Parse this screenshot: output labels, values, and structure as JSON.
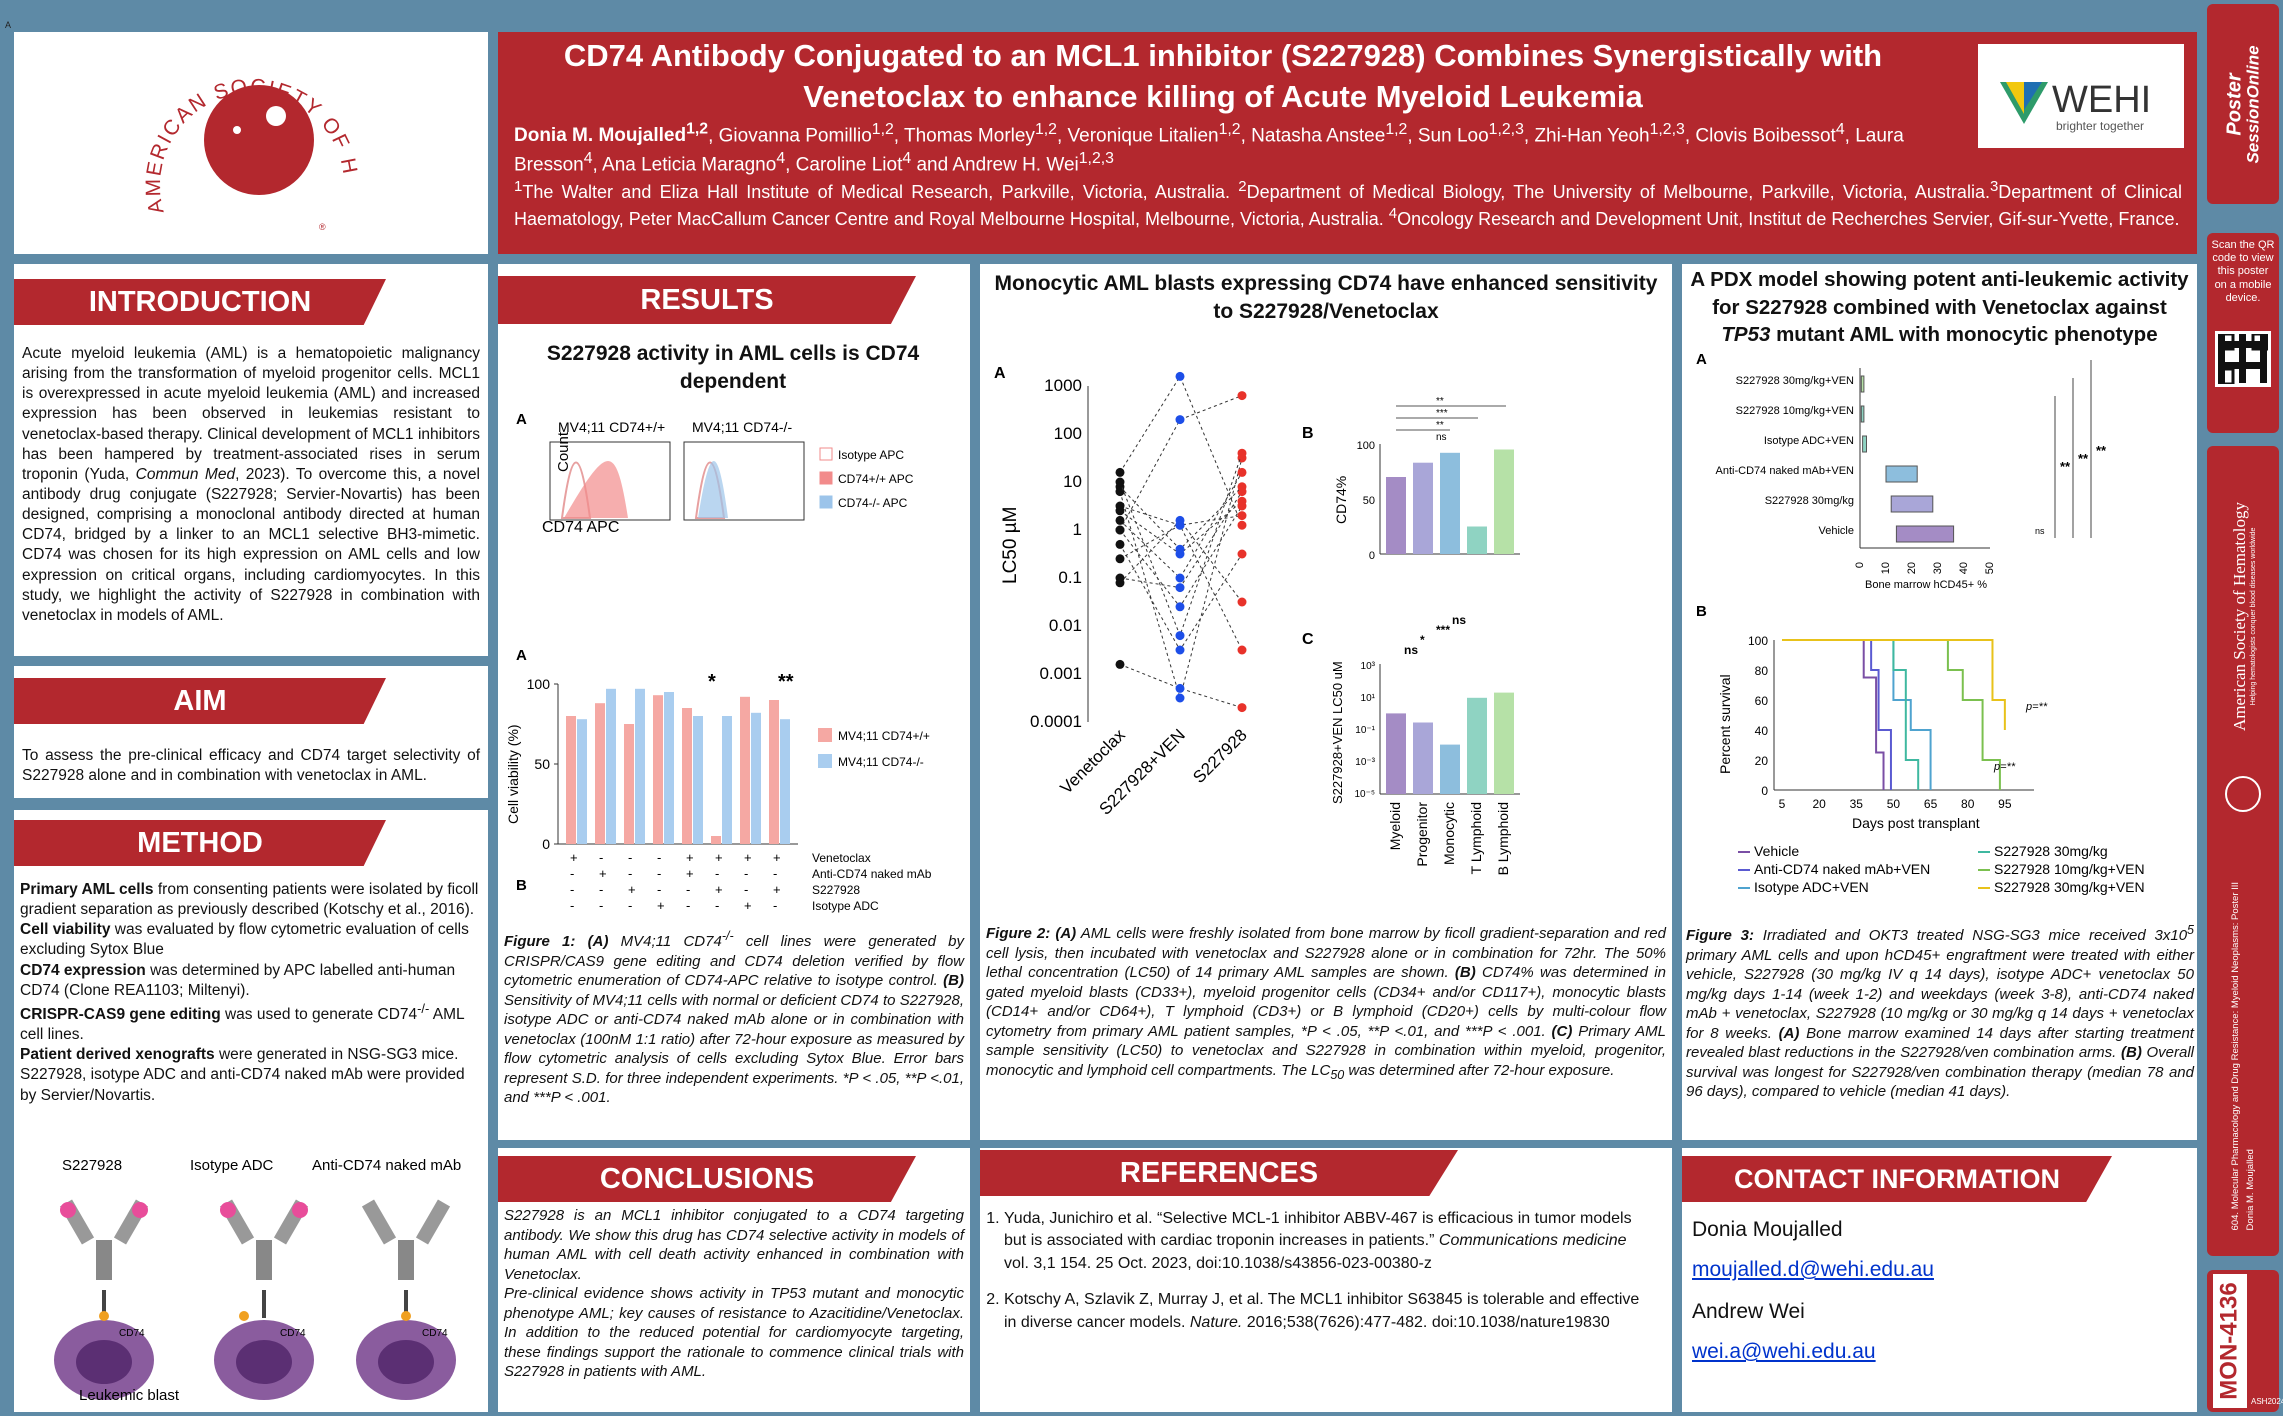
{
  "header": {
    "title_line1": "CD74 Antibody Conjugated to an MCL1 inhibitor (S227928) Combines Synergistically with",
    "title_line2": "Venetoclax to enhance killing of Acute Myeloid Leukemia",
    "authors_html": "<b>Donia M. Moujalled<sup>1,2</sup></b>, Giovanna Pomillio<sup>1,2</sup>, Thomas Morley<sup>1,2</sup>, Veronique Litalien<sup>1,2</sup>, Natasha Anstee<sup>1,2</sup>, Sun Loo<sup>1,2,3</sup>, Zhi-Han Yeoh<sup>1,2,3</sup>, Clovis Boibessot<sup>4</sup>, Laura Bresson<sup>4</sup>, Ana Leticia Maragno<sup>4</sup>, Caroline Liot<sup>4</sup> and Andrew H. Wei<sup>1,2,3</sup>",
    "affil_html": "<sup>1</sup>The Walter and Eliza Hall Institute of Medical Research, Parkville, Victoria, Australia. <sup>2</sup>Department of Medical Biology, The University of Melbourne, Parkville, Victoria, Australia.<sup>3</sup>Department of Clinical Haematology, Peter MacCallum Cancer Centre and Royal Melbourne Hospital, Melbourne, Victoria, Australia. <sup>4</sup>Oncology Research and Development Unit, Institut de Recherches Servier, Gif-sur-Yvette, France.",
    "ash_logo_text": "AMERICAN SOCIETY OF HEMATOLOGY",
    "wehi_name": "WEHI",
    "wehi_tagline": "brighter together"
  },
  "intro": {
    "heading": "INTRODUCTION",
    "text_html": "Acute myeloid leukemia (AML) is a hematopoietic malignancy arising from the transformation of myeloid progenitor cells. MCL1 is overexpressed in acute myeloid leukemia (AML) and increased expression has been observed in leukemias resistant to venetoclax-based therapy. Clinical development of MCL1 inhibitors has been hampered by treatment-associated rises in serum troponin (Yuda, <i>Commun Med</i>, 2023). To overcome this, a novel antibody drug conjugate (S227928; Servier-Novartis) has been designed, comprising a monoclonal antibody directed at human CD74, bridged by a linker to an MCL1 selective BH3-mimetic. CD74 was chosen for its high expression on AML cells and low expression on critical organs, including cardiomyocytes. In this study, we highlight the activity of S227928 in combination with venetoclax in models of AML."
  },
  "aim": {
    "heading": "AIM",
    "text": "To assess the pre-clinical efficacy and CD74 target selectivity of S227928 alone and in combination with venetoclax in AML."
  },
  "method": {
    "heading": "METHOD",
    "text_html": "<b>Primary AML cells</b> from consenting patients were isolated by ficoll gradient separation as previously described (Kotschy et al., 2016).<br><b>Cell viability</b> was evaluated by flow cytometric evaluation of cells excluding Sytox Blue<br><b>CD74 expression</b> was determined by APC labelled anti-human CD74 (Clone REA1103; Miltenyi).<br><b>CRISPR-CAS9 gene editing</b> was used to generate CD74<sup>-/-</sup> AML cell lines.<br><b>Patient derived xenografts</b> were generated in NSG-SG3 mice. S227928, isotype ADC and anti-CD74 naked mAb were provided by Servier/Novartis.",
    "diagram": {
      "labels": [
        "S227928",
        "Isotype ADC",
        "Anti-CD74 naked mAb"
      ],
      "cd74": "CD74",
      "blast": "Leukemic blast"
    }
  },
  "results": {
    "heading": "RESULTS",
    "subtitle": "S227928 activity in AML cells is CD74 dependent",
    "fig1a": {
      "panel": "A",
      "col1": "MV4;11 CD74",
      "col1_sup": "+/+",
      "col2": "MV4;11 CD74",
      "col2_sup": "-/-",
      "ylabel": "Count",
      "xlabel": "CD74 APC",
      "legend": [
        "Isotype APC",
        "CD74+/+ APC",
        "CD74-/- APC"
      ]
    },
    "fig1b": {
      "panel": "B",
      "ylabel": "Cell viability (%)",
      "legend": [
        "MV4;11 CD74+/+",
        "MV4;11 CD74-/-"
      ],
      "row_labels": [
        "Venetoclax",
        "Anti-CD74 naked mAb",
        "S227928",
        "Isotype ADC"
      ],
      "rows": [
        [
          "+",
          "-",
          "-",
          "-",
          "+",
          "+",
          "+",
          "+"
        ],
        [
          "-",
          "+",
          "-",
          "-",
          "+",
          "-",
          "-",
          "-"
        ],
        [
          "-",
          "-",
          "+",
          "-",
          "-",
          "+",
          "-",
          "+"
        ],
        [
          "-",
          "-",
          "-",
          "+",
          "-",
          "-",
          "+",
          "-"
        ]
      ],
      "sig": [
        "*",
        "**"
      ]
    },
    "caption_html": "<b>Figure 1: (A)</b> MV4;11 CD74<sup>-/-</sup> cell lines were generated by CRISPR/CAS9 gene editing and CD74 deletion verified by flow cytometric enumeration of CD74-APC relative to isotype control. <b>(B)</b> Sensitivity of MV4;11 cells with normal or deficient CD74 to S227928, isotype ADC or anti-CD74 naked mAb alone or in combination with venetoclax (100nM 1:1 ratio) after 72-hour exposure as measured by flow cytometric analysis of cells excluding Sytox Blue. Error bars represent S.D. for three independent experiments. *P &lt; .05, **P &lt;.01, and ***P &lt; .001."
  },
  "fig2": {
    "title": "Monocytic AML blasts expressing CD74 have enhanced sensitivity to S227928/Venetoclax",
    "a_label": "A",
    "a_ylabel": "LC50 µM",
    "a_yticks": [
      "1000",
      "100",
      "10",
      "1",
      "0.1",
      "0.01",
      "0.001",
      "0.0001"
    ],
    "a_xticks": [
      "Venetoclax",
      "S227928+VEN",
      "S227928"
    ],
    "b_label": "B",
    "b_ylabel": "CD74%",
    "b_yticks": [
      "100",
      "50",
      "0"
    ],
    "b_sig": [
      "**",
      "***",
      "**",
      "ns"
    ],
    "c_label": "C",
    "c_ylabel": "S227928+VEN LC50 uM",
    "c_yticks": [
      "10³",
      "10¹",
      "10⁻¹",
      "10⁻³",
      "10⁻⁵"
    ],
    "c_sig": [
      "ns",
      "*",
      "***",
      "ns"
    ],
    "c_xticks": [
      "Myeloid",
      "Progenitor",
      "Monocytic",
      "T Lymphoid",
      "B Lymphoid"
    ],
    "caption_html": "<b>Figure 2: (A)</b> AML cells were freshly isolated from bone marrow by ficoll gradient-separation and red cell lysis, then incubated with venetoclax and S227928 alone or in combination for 72hr. The 50% lethal concentration (LC50) of 14 primary AML samples are shown. <b>(B)</b> CD74% was determined in gated myeloid blasts (CD33+), myeloid progenitor cells (CD34+ and/or CD117+), monocytic blasts (CD14+ and/or CD64+), T lymphoid (CD3+) or B lymphoid (CD20+) cells by multi-colour flow cytometry from primary AML patient samples, *P &lt; .05, **P &lt;.01, and ***P &lt; .001. <b>(C)</b> Primary AML sample sensitivity (LC50) to venetoclax and S227928 in combination within myeloid, progenitor, monocytic and lymphoid cell compartments. The LC<sub>50</sub> was determined after 72-hour exposure."
  },
  "fig3": {
    "title_html": "A PDX model showing potent anti-leukemic activity for S227928 combined with Venetoclax against <i>TP53</i> mutant AML with monocytic phenotype",
    "a_label": "A",
    "a_cats": [
      "S227928 30mg/kg+VEN",
      "S227928 10mg/kg+VEN",
      "Isotype ADC+VEN",
      "Anti-CD74 naked mAb+VEN",
      "S227928 30mg/kg",
      "Vehicle"
    ],
    "a_xticks": [
      "0",
      "10",
      "20",
      "30",
      "40",
      "50"
    ],
    "a_xlabel": "Bone marrow hCD45+ %",
    "a_sig": [
      "ns",
      "**",
      "**",
      "**"
    ],
    "b_label": "B",
    "b_ylabel": "Percent survival",
    "b_xlabel": "Days post transplant",
    "b_yticks": [
      "100",
      "80",
      "60",
      "40",
      "20",
      "0"
    ],
    "b_xticks": [
      "5",
      "20",
      "35",
      "50",
      "65",
      "80",
      "95"
    ],
    "b_p": [
      "p=**",
      "p=**"
    ],
    "legend": [
      "Vehicle",
      "Anti-CD74 naked mAb+VEN",
      "Isotype ADC+VEN",
      "S227928 30mg/kg",
      "S227928 10mg/kg+VEN",
      "S227928 30mg/kg+VEN"
    ],
    "caption_html": "<b>Figure 3:</b> Irradiated and OKT3 treated NSG-SG3 mice received 3x10<sup>5</sup> primary AML cells and upon hCD45+ engraftment were treated with either vehicle, S227928 (30 mg/kg IV q 14 days), isotype ADC+ venetoclax 50 mg/kg days 1-14 (week 1-2) and weekdays (week 3-8), anti-CD74 naked mAb + venetoclax, S227928 (10 mg/kg or 30 mg/kg  q 14 days + venetoclax for 8 weeks. <b>(A)</b> Bone marrow examined 14 days after starting treatment revealed blast reductions in the S227928/ven combination arms. <b>(B)</b> Overall survival was longest for S227928/ven combination therapy (median 78 and 96 days), compared to vehicle (median 41 days)."
  },
  "conclusions": {
    "heading": "CONCLUSIONS",
    "text_html": "S227928 is an MCL1 inhibitor conjugated to a CD74 targeting antibody. We show this drug has CD74 selective activity in models of human AML with cell death activity enhanced in combination with Venetoclax.<br>Pre-clinical evidence shows activity in TP53 mutant and monocytic phenotype AML; key causes of resistance to Azacitidine/Venetoclax. In addition to the reduced potential for cardiomyocyte targeting, these findings support the rationale to commence clinical trials with S227928 in patients with AML."
  },
  "references": {
    "heading": "REFERENCES",
    "items_html": [
      "Yuda, Junichiro et al. “Selective MCL-1 inhibitor ABBV-467 is efficacious in tumor models but is associated with cardiac troponin increases in patients.” <i>Communications medicine</i> vol. 3,1 154. 25 Oct. 2023, doi:10.1038/s43856-023-00380-z",
      "Kotschy A, Szlavik Z, Murray J, et al. The MCL1 inhibitor S63845 is tolerable and effective in diverse cancer models. <i>Nature.</i> 2016;538(7626):477-482. doi:10.1038/nature19830"
    ]
  },
  "contact": {
    "heading": "CONTACT INFORMATION",
    "name1": "Donia Moujalled",
    "email1": "moujalled.d@wehi.edu.au",
    "name2": "Andrew Wei",
    "email2": "wei.a@wehi.edu.au"
  },
  "sidebar": {
    "ps_line1": "Poster",
    "ps_line2": "SessionOnline",
    "qr_text": "Scan the QR code to view this poster on a mobile device.",
    "ash_vertical": "American Society of Hematology",
    "ash_tag": "Helping hematologists conquer blood diseases worldwide",
    "session": "604. Molecular Pharmacology and Drug Resistance: Myeloid Neoplasms: Poster III",
    "author": "Donia M. Moujalled",
    "poster_id": "MON-4136",
    "year": "ASH2024"
  },
  "corner": "A"
}
